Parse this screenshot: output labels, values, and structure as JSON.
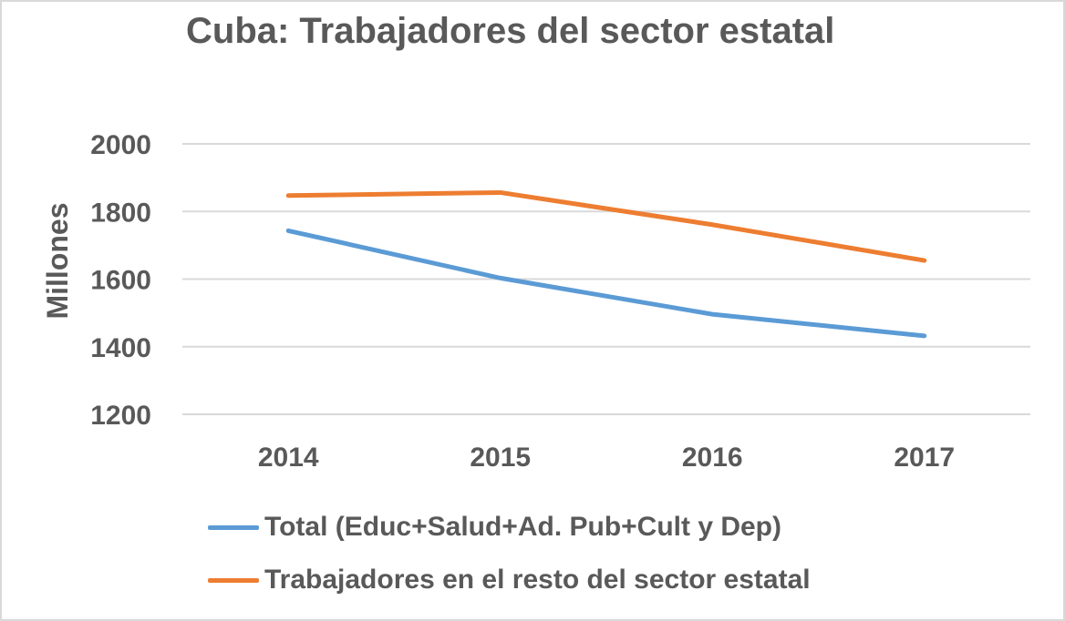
{
  "chart_data": {
    "type": "line",
    "title": "Cuba: Trabajadores del sector estatal",
    "xlabel": "",
    "ylabel": "Millones",
    "categories": [
      "2014",
      "2015",
      "2016",
      "2017"
    ],
    "ylim": [
      1200,
      2000
    ],
    "yticks": [
      1200,
      1400,
      1600,
      1800,
      2000
    ],
    "grid": true,
    "legend_position": "bottom",
    "series": [
      {
        "name": "Total (Educ+Salud+Ad. Pub+Cult y Dep)",
        "color": "#5b9bd5",
        "values": [
          1743,
          1603,
          1496,
          1432
        ]
      },
      {
        "name": "Trabajadores en el resto del sector estatal",
        "color": "#ed7d31",
        "values": [
          1847,
          1856,
          1761,
          1655
        ]
      }
    ]
  }
}
